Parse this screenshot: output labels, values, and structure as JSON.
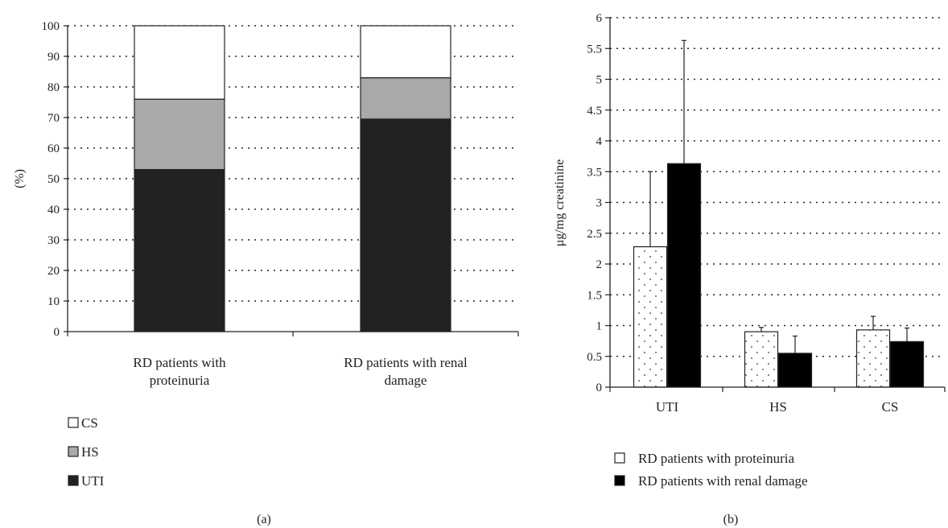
{
  "chart_data": [
    {
      "type": "bar",
      "stacked": true,
      "panel_label": "(a)",
      "ylabel": "(%)",
      "ylim": [
        0,
        100
      ],
      "yticks": [
        "0",
        "10",
        "20",
        "30",
        "40",
        "50",
        "60",
        "70",
        "80",
        "90",
        "100"
      ],
      "grid": true,
      "categories": [
        [
          "RD patients with",
          "proteinuria"
        ],
        [
          "RD patients with renal",
          "damage"
        ]
      ],
      "series": [
        {
          "name": "UTI",
          "color": "#222222",
          "values": [
            53,
            69.5
          ]
        },
        {
          "name": "HS",
          "color": "#a9a9a9",
          "values": [
            23,
            13.5
          ]
        },
        {
          "name": "CS",
          "color": "#ffffff",
          "values": [
            24,
            17
          ]
        }
      ],
      "legend": {
        "placement": "bottom-left",
        "order": [
          "CS",
          "HS",
          "UTI"
        ]
      }
    },
    {
      "type": "bar",
      "panel_label": "(b)",
      "ylabel": "μg/mg creatinine",
      "ylim": [
        0,
        6
      ],
      "yticks": [
        "0",
        "0.5",
        "1",
        "1.5",
        "2",
        "2.5",
        "3",
        "3.5",
        "4",
        "4.5",
        "5",
        "5.5",
        "6"
      ],
      "grid": true,
      "categories": [
        "UTI",
        "HS",
        "CS"
      ],
      "series": [
        {
          "name": "RD patients with proteinuria",
          "pattern": "dotted",
          "values": [
            2.28,
            0.9,
            0.93
          ],
          "error": [
            1.22,
            0.07,
            0.22
          ]
        },
        {
          "name": "RD patients with renal damage",
          "color": "#000000",
          "values": [
            3.63,
            0.55,
            0.74
          ],
          "error": [
            2.0,
            0.28,
            0.22
          ]
        }
      ],
      "legend": {
        "placement": "bottom-center"
      }
    }
  ]
}
